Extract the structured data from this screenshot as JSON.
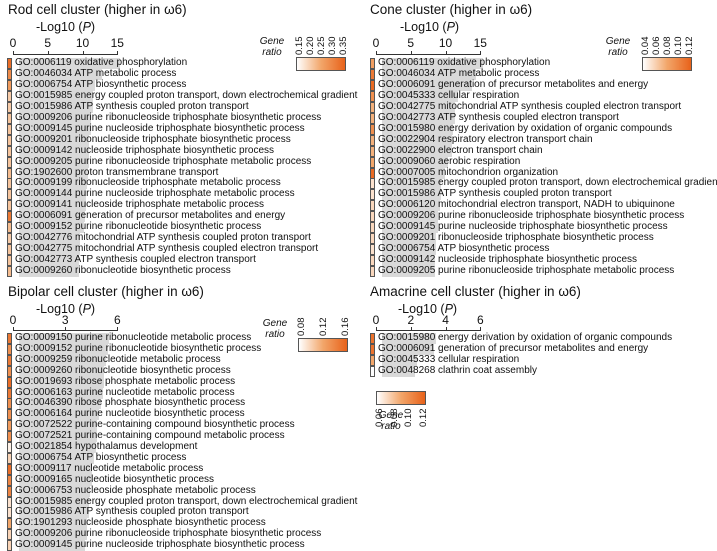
{
  "colors": {
    "low": "#ffffff",
    "mid": "#f2a66a",
    "high": "#e8621a",
    "bar": "#d9d9d9"
  },
  "panels": [
    {
      "id": "rod",
      "title": "Rod cell cluster (higher in ω6)",
      "xlabel_prefix": "-Log10 (",
      "xlabel_var": "P",
      "xlabel_suffix": ")",
      "ticks": [
        "0",
        "5",
        "10",
        "15"
      ],
      "legend_title": "Gene ratio",
      "legend_ticks": [
        "0.15",
        "0.20",
        "0.25",
        "0.30",
        "0.35"
      ],
      "chart_data": {
        "type": "bar",
        "orientation": "horizontal",
        "xlim": [
          0,
          15
        ],
        "categories": [
          "GO:0006119 oxidative phosphorylation",
          "GO:0046034 ATP metabolic process",
          "GO:0006754 ATP biosynthetic process",
          "GO:0015985 energy coupled proton transport, down electrochemical gradient",
          "GO:0015986 ATP synthesis coupled proton transport",
          "GO:0009206 purine ribonucleoside triphosphate biosynthetic process",
          "GO:0009145 purine nucleoside triphosphate biosynthetic process",
          "GO:0009201 ribonucleoside triphosphate biosynthetic process",
          "GO:0009142 nucleoside triphosphate biosynthetic process",
          "GO:0009205 purine ribonucleoside triphosphate metabolic process",
          "GO:1902600 proton transmembrane transport",
          "GO:0009199 ribonucleoside triphosphate metabolic process",
          "GO:0009144 purine nucleoside triphosphate metabolic process",
          "GO:0009141 nucleoside triphosphate metabolic process",
          "GO:0006091 generation of precursor metabolites and energy",
          "GO:0009152 purine ribonucleotide biosynthetic process",
          "GO:0042776 mitochondrial ATP synthesis coupled proton transport",
          "GO:0042775 mitochondrial ATP synthesis coupled electron transport",
          "GO:0042773 ATP synthesis coupled electron transport",
          "GO:0009260 ribonucleotide biosynthetic process"
        ],
        "values": [
          14.5,
          12.0,
          11.0,
          10.6,
          10.6,
          10.3,
          10.3,
          10.1,
          10.0,
          10.0,
          9.9,
          9.8,
          9.7,
          9.6,
          9.5,
          9.3,
          8.8,
          8.8,
          8.7,
          8.6
        ],
        "gene_ratio": [
          0.35,
          0.3,
          0.27,
          0.2,
          0.2,
          0.21,
          0.21,
          0.21,
          0.21,
          0.21,
          0.22,
          0.21,
          0.21,
          0.21,
          0.33,
          0.22,
          0.2,
          0.21,
          0.21,
          0.22
        ],
        "color_range": [
          0.13,
          0.37
        ]
      }
    },
    {
      "id": "cone",
      "title": "Cone cluster (higher in ω6)",
      "xlabel_prefix": "-Log10 (",
      "xlabel_var": "P",
      "xlabel_suffix": ")",
      "ticks": [
        "0",
        "5",
        "10",
        "15"
      ],
      "legend_title": "Gene ratio",
      "legend_ticks": [
        "0.04",
        "0.06",
        "0.08",
        "0.10",
        "0.12"
      ],
      "chart_data": {
        "type": "bar",
        "orientation": "horizontal",
        "xlim": [
          0,
          15
        ],
        "categories": [
          "GO:0006119 oxidative phosphorylation",
          "GO:0046034 ATP metabolic process",
          "GO:0006091 generation of precursor metabolites and energy",
          "GO:0045333 cellular respiration",
          "GO:0042775 mitochondrial ATP synthesis coupled electron transport",
          "GO:0042773 ATP synthesis coupled electron transport",
          "GO:0015980 energy derivation by oxidation of organic compounds",
          "GO:0022904 respiratory electron transport chain",
          "GO:0022900 electron transport chain",
          "GO:0009060 aerobic respiration",
          "GO:0007005 mitochondrion organization",
          "GO:0015985 energy coupled proton transport, down electrochemical gradient",
          "GO:0015986 ATP synthesis coupled proton transport",
          "GO:0006120 mitochondrial electron transport, NADH to ubiquinone",
          "GO:0009206 purine ribonucleoside triphosphate biosynthetic process",
          "GO:0009145 purine nucleoside triphosphate biosynthetic process",
          "GO:0009201 ribonucleoside triphosphate biosynthetic process",
          "GO:0006754 ATP biosynthetic process",
          "GO:0009142 nucleoside triphosphate biosynthetic process",
          "GO:0009205 purine ribonucleoside triphosphate metabolic process"
        ],
        "values": [
          14.5,
          13.5,
          13.0,
          11.0,
          10.5,
          10.5,
          10.2,
          10.0,
          10.0,
          9.5,
          9.0,
          8.5,
          8.5,
          8.3,
          8.0,
          8.0,
          7.8,
          7.7,
          7.6,
          7.6
        ],
        "gene_ratio": [
          0.085,
          0.11,
          0.12,
          0.095,
          0.075,
          0.075,
          0.095,
          0.075,
          0.075,
          0.08,
          0.12,
          0.05,
          0.05,
          0.055,
          0.055,
          0.055,
          0.055,
          0.05,
          0.055,
          0.055
        ],
        "color_range": [
          0.035,
          0.125
        ]
      }
    },
    {
      "id": "bipolar",
      "title": "Bipolar cell cluster (higher in ω6)",
      "xlabel_prefix": "-Log10 (",
      "xlabel_var": "P",
      "xlabel_suffix": ")",
      "ticks": [
        "0",
        "3",
        "6"
      ],
      "legend_title": "Gene ratio",
      "legend_ticks": [
        "0.08",
        "0.12",
        "0.16"
      ],
      "chart_data": {
        "type": "bar",
        "orientation": "horizontal",
        "xlim": [
          0,
          6
        ],
        "categories": [
          "GO:0009150 purine ribonucleotide metabolic process",
          "GO:0009152 purine ribonucleotide biosynthetic process",
          "GO:0009259 ribonucleotide metabolic process",
          "GO:0009260 ribonucleotide biosynthetic process",
          "GO:0019693 ribose phosphate metabolic process",
          "GO:0006163 purine nucleotide metabolic process",
          "GO:0046390 ribose phosphate biosynthetic process",
          "GO:0006164 purine nucleotide biosynthetic process",
          "GO:0072522 purine-containing compound biosynthetic process",
          "GO:0072521 purine-containing compound metabolic process",
          "GO:0021854 hypothalamus development",
          "GO:0006754 ATP biosynthetic process",
          "GO:0009117 nucleotide metabolic process",
          "GO:0009165 nucleotide biosynthetic process",
          "GO:0006753 nucleoside phosphate metabolic process",
          "GO:0015985 energy coupled proton transport, down electrochemical gradient",
          "GO:0015986 ATP synthesis coupled proton transport",
          "GO:1901293 nucleoside phosphate biosynthetic process",
          "GO:0009206 purine ribonucleoside triphosphate biosynthetic process",
          "GO:0009145 purine nucleoside triphosphate biosynthetic process"
        ],
        "values": [
          5.2,
          5.1,
          5.0,
          4.9,
          4.9,
          4.8,
          4.7,
          4.6,
          4.5,
          4.5,
          4.4,
          4.3,
          4.2,
          4.2,
          4.1,
          4.0,
          4.0,
          3.9,
          3.9,
          3.8
        ],
        "gene_ratio": [
          0.15,
          0.13,
          0.15,
          0.13,
          0.16,
          0.15,
          0.13,
          0.13,
          0.12,
          0.13,
          0.06,
          0.08,
          0.16,
          0.14,
          0.14,
          0.07,
          0.07,
          0.11,
          0.08,
          0.08
        ],
        "color_range": [
          0.05,
          0.17
        ]
      }
    },
    {
      "id": "amacrine",
      "title": "Amacrine cell cluster (higher in ω6)",
      "xlabel_prefix": "-Log10 (",
      "xlabel_var": "P",
      "xlabel_suffix": ")",
      "ticks": [
        "0",
        "2",
        "4",
        "6"
      ],
      "legend_title": "Gene ratio",
      "legend_ticks": [
        "0.06",
        "0.08",
        "0.10",
        "0.12"
      ],
      "chart_data": {
        "type": "bar",
        "orientation": "horizontal",
        "xlim": [
          0,
          6
        ],
        "categories": [
          "GO:0015980 energy derivation by oxidation of organic compounds",
          "GO:0006091 generation of precursor metabolites and energy",
          "GO:0045333 cellular respiration",
          "GO:0048268 clathrin coat assembly"
        ],
        "values": [
          3.1,
          3.0,
          2.0,
          1.9
        ],
        "gene_ratio": [
          0.12,
          0.12,
          0.09,
          0.05
        ],
        "color_range": [
          0.05,
          0.13
        ]
      }
    }
  ]
}
